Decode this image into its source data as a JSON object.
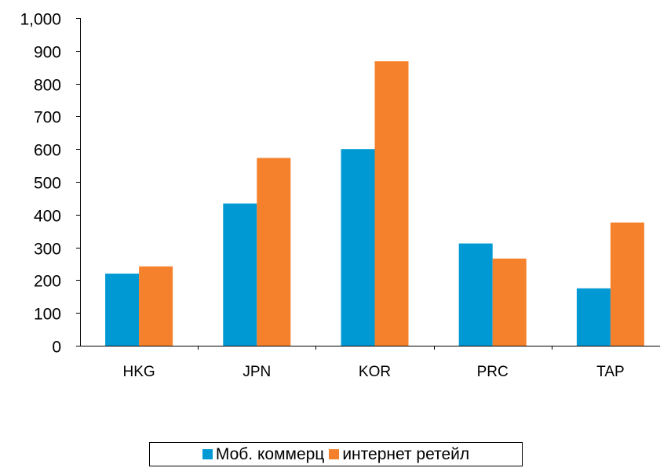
{
  "chart_data": {
    "type": "bar",
    "title": "",
    "xlabel": "",
    "ylabel": "",
    "categories": [
      "HKG",
      "JPN",
      "KOR",
      "PRC",
      "TAP"
    ],
    "series": [
      {
        "name": "Моб. коммерц",
        "color": "#0099d4",
        "values": [
          220,
          434,
          600,
          312,
          175
        ]
      },
      {
        "name": "интернет ретейл",
        "color": "#f5812c",
        "values": [
          242,
          573,
          868,
          266,
          376
        ]
      }
    ],
    "ylim": [
      0,
      1000
    ],
    "yticks": [
      {
        "value": 0,
        "label": "0"
      },
      {
        "value": 100,
        "label": "100"
      },
      {
        "value": 200,
        "label": "200"
      },
      {
        "value": 300,
        "label": "300"
      },
      {
        "value": 400,
        "label": "400"
      },
      {
        "value": 500,
        "label": "500"
      },
      {
        "value": 600,
        "label": "600"
      },
      {
        "value": 700,
        "label": "700"
      },
      {
        "value": 800,
        "label": "800"
      },
      {
        "value": 900,
        "label": "900"
      },
      {
        "value": 1000,
        "label": "1,000"
      }
    ],
    "grid": false,
    "legend_position": "bottom"
  }
}
